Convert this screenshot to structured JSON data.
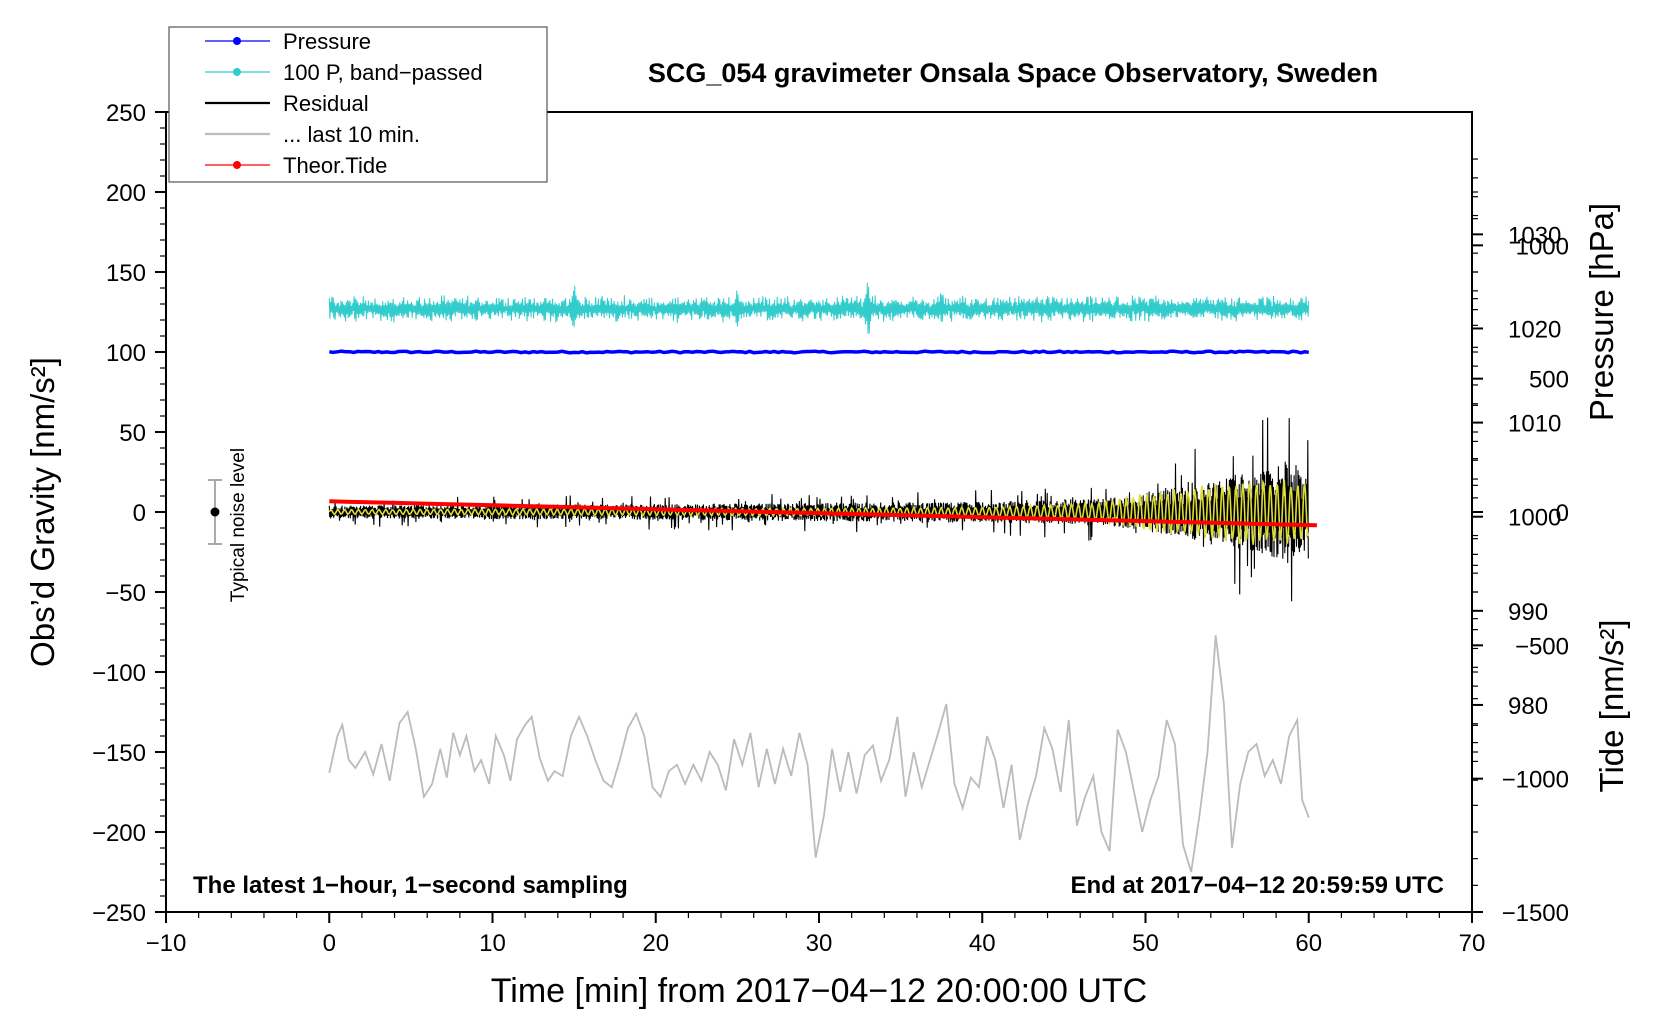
{
  "chart_data": {
    "type": "line",
    "title": "SCG_054 gravimeter Onsala Space Observatory, Sweden",
    "xlabel": "Time [min] from 2017−04−12 20:00:00 UTC",
    "ylabel_left": "Obs’d Gravity [nm/s²]",
    "ylabel_right_top": "Pressure [hPa]",
    "ylabel_right_bottom": "Tide [nm/s²]",
    "xlim": [
      -10,
      70
    ],
    "ylim": [
      -250,
      250
    ],
    "pressure_axis_range": [
      958,
      1043
    ],
    "tide_axis_range": [
      -1500,
      1500
    ],
    "x_ticks": [
      "−10",
      "0",
      "10",
      "20",
      "30",
      "40",
      "50",
      "60",
      "70"
    ],
    "y_ticks": [
      "−250",
      "−200",
      "−150",
      "−100",
      "−50",
      "0",
      "50",
      "100",
      "150",
      "200",
      "250"
    ],
    "pressure_ticks": [
      "980",
      "990",
      "1000",
      "1010",
      "1020",
      "1030"
    ],
    "tide_ticks": [
      "−1500",
      "−1000",
      "−500",
      "0",
      "500",
      "1000"
    ],
    "legend": {
      "position": "top-left",
      "entries": [
        {
          "label": "Pressure",
          "color": "#0000ff",
          "marker": true
        },
        {
          "label": "100 P, band−passed",
          "color": "#33cccc",
          "marker": true
        },
        {
          "label": "Residual",
          "color": "#000000",
          "marker": false
        },
        {
          "label": "... last 10 min.",
          "color": "#bbbbbb",
          "marker": false
        },
        {
          "label": "Theor.Tide",
          "color": "#ff0000",
          "marker": true
        }
      ]
    },
    "annotations": {
      "bottom_left": "The latest 1−hour, 1−second sampling",
      "bottom_right": "End at 2017−04−12 20:59:59 UTC",
      "noise_label": "Typical noise level"
    },
    "noise_bar": {
      "x": -7,
      "y": 0,
      "half_range": 20
    },
    "series": [
      {
        "name": "Pressure",
        "color": "#0000ff",
        "x_range": [
          0,
          60
        ],
        "level": 100,
        "amplitude": 0.5
      },
      {
        "name": "100 P, band−passed",
        "color": "#33cccc",
        "x_range": [
          0,
          60
        ],
        "level": 127,
        "amplitude": 6,
        "spikes": [
          {
            "x": 15,
            "amp": 17
          },
          {
            "x": 25,
            "amp": 13
          },
          {
            "x": 33,
            "amp": 22
          },
          {
            "x": 37.5,
            "amp": 12
          }
        ]
      },
      {
        "name": "Residual",
        "color": "#000000",
        "x_range": [
          0,
          60
        ],
        "level": 0,
        "envelope": [
          [
            0,
            9
          ],
          [
            10,
            10
          ],
          [
            20,
            11
          ],
          [
            30,
            13
          ],
          [
            40,
            14
          ],
          [
            48,
            20
          ],
          [
            52,
            35
          ],
          [
            55,
            50
          ],
          [
            57.5,
            60
          ],
          [
            59,
            75
          ],
          [
            60,
            50
          ]
        ]
      },
      {
        "name": "Residual, filtered",
        "color": "#dddd33",
        "x_range": [
          0,
          60
        ],
        "level": 0,
        "envelope": [
          [
            0,
            1.5
          ],
          [
            40,
            3
          ],
          [
            47,
            6
          ],
          [
            50,
            12
          ],
          [
            54,
            18
          ],
          [
            57,
            22
          ],
          [
            60,
            20
          ]
        ]
      },
      {
        "name": "... last 10 min.",
        "color": "#bbbbbb",
        "x_range": [
          0,
          60
        ],
        "points": [
          [
            0,
            -163
          ],
          [
            0.5,
            -140
          ],
          [
            0.8,
            -133
          ],
          [
            1.2,
            -155
          ],
          [
            1.6,
            -160
          ],
          [
            2.2,
            -150
          ],
          [
            2.7,
            -164
          ],
          [
            3.2,
            -145
          ],
          [
            3.7,
            -168
          ],
          [
            4.3,
            -132
          ],
          [
            4.8,
            -125
          ],
          [
            5.3,
            -148
          ],
          [
            5.8,
            -178
          ],
          [
            6.3,
            -170
          ],
          [
            6.8,
            -148
          ],
          [
            7.2,
            -166
          ],
          [
            7.6,
            -138
          ],
          [
            8.0,
            -152
          ],
          [
            8.4,
            -140
          ],
          [
            8.9,
            -162
          ],
          [
            9.3,
            -155
          ],
          [
            9.8,
            -170
          ],
          [
            10.2,
            -140
          ],
          [
            10.7,
            -152
          ],
          [
            11.1,
            -168
          ],
          [
            11.5,
            -142
          ],
          [
            12.0,
            -133
          ],
          [
            12.4,
            -128
          ],
          [
            12.9,
            -154
          ],
          [
            13.4,
            -168
          ],
          [
            13.8,
            -162
          ],
          [
            14.3,
            -165
          ],
          [
            14.8,
            -140
          ],
          [
            15.3,
            -128
          ],
          [
            15.8,
            -140
          ],
          [
            16.3,
            -155
          ],
          [
            16.8,
            -168
          ],
          [
            17.3,
            -172
          ],
          [
            17.8,
            -155
          ],
          [
            18.3,
            -135
          ],
          [
            18.8,
            -126
          ],
          [
            19.3,
            -140
          ],
          [
            19.8,
            -172
          ],
          [
            20.3,
            -178
          ],
          [
            20.8,
            -162
          ],
          [
            21.3,
            -158
          ],
          [
            21.8,
            -170
          ],
          [
            22.3,
            -158
          ],
          [
            22.8,
            -168
          ],
          [
            23.3,
            -150
          ],
          [
            23.8,
            -158
          ],
          [
            24.3,
            -174
          ],
          [
            24.8,
            -142
          ],
          [
            25.3,
            -158
          ],
          [
            25.8,
            -138
          ],
          [
            26.3,
            -172
          ],
          [
            26.8,
            -148
          ],
          [
            27.3,
            -170
          ],
          [
            27.8,
            -148
          ],
          [
            28.3,
            -165
          ],
          [
            28.8,
            -138
          ],
          [
            29.3,
            -158
          ],
          [
            29.8,
            -216
          ],
          [
            30.3,
            -190
          ],
          [
            30.8,
            -148
          ],
          [
            31.3,
            -175
          ],
          [
            31.8,
            -150
          ],
          [
            32.3,
            -176
          ],
          [
            32.8,
            -152
          ],
          [
            33.3,
            -146
          ],
          [
            33.8,
            -168
          ],
          [
            34.3,
            -155
          ],
          [
            34.8,
            -128
          ],
          [
            35.3,
            -178
          ],
          [
            35.8,
            -150
          ],
          [
            36.3,
            -172
          ],
          [
            36.8,
            -155
          ],
          [
            37.3,
            -138
          ],
          [
            37.8,
            -120
          ],
          [
            38.3,
            -170
          ],
          [
            38.8,
            -185
          ],
          [
            39.3,
            -166
          ],
          [
            39.8,
            -172
          ],
          [
            40.3,
            -140
          ],
          [
            40.8,
            -155
          ],
          [
            41.3,
            -185
          ],
          [
            41.8,
            -158
          ],
          [
            42.3,
            -205
          ],
          [
            42.8,
            -182
          ],
          [
            43.3,
            -165
          ],
          [
            43.8,
            -135
          ],
          [
            44.3,
            -148
          ],
          [
            44.8,
            -175
          ],
          [
            45.3,
            -130
          ],
          [
            45.8,
            -196
          ],
          [
            46.3,
            -178
          ],
          [
            46.8,
            -165
          ],
          [
            47.3,
            -200
          ],
          [
            47.8,
            -212
          ],
          [
            48.3,
            -136
          ],
          [
            48.8,
            -150
          ],
          [
            49.3,
            -175
          ],
          [
            49.8,
            -200
          ],
          [
            50.3,
            -180
          ],
          [
            50.8,
            -165
          ],
          [
            51.3,
            -130
          ],
          [
            51.8,
            -145
          ],
          [
            52.3,
            -208
          ],
          [
            52.8,
            -225
          ],
          [
            53.3,
            -190
          ],
          [
            53.8,
            -150
          ],
          [
            54.3,
            -77
          ],
          [
            54.8,
            -120
          ],
          [
            55.3,
            -210
          ],
          [
            55.8,
            -170
          ],
          [
            56.3,
            -150
          ],
          [
            56.8,
            -145
          ],
          [
            57.3,
            -165
          ],
          [
            57.8,
            -155
          ],
          [
            58.3,
            -170
          ],
          [
            58.8,
            -140
          ],
          [
            59.3,
            -130
          ],
          [
            59.6,
            -180
          ],
          [
            60,
            -191
          ]
        ]
      },
      {
        "name": "Theor.Tide",
        "color": "#ff0000",
        "x": [
          0,
          60.5
        ],
        "y_tide": [
          40,
          -50
        ]
      }
    ]
  }
}
